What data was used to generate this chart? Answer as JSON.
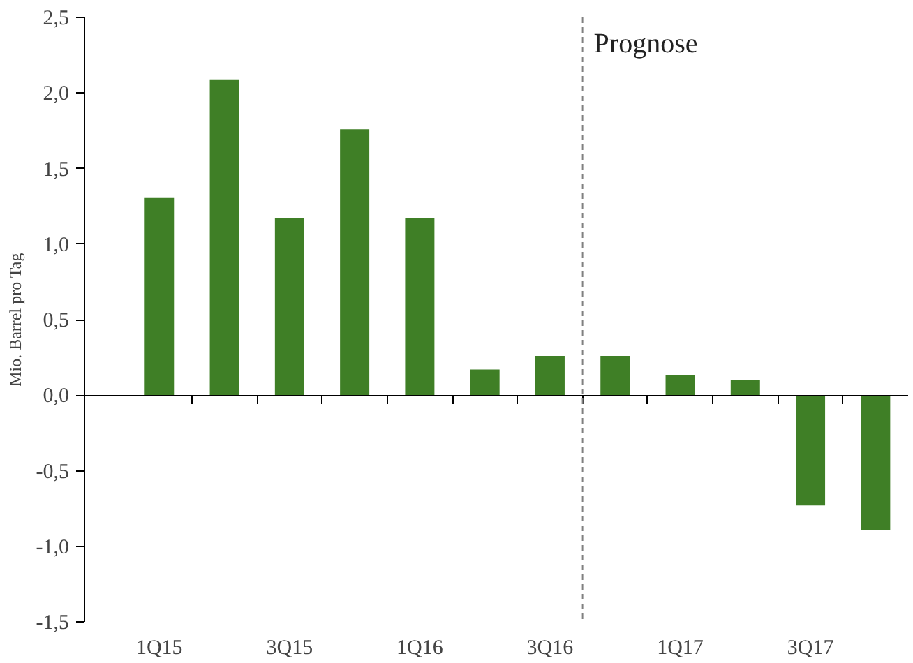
{
  "chart_data": {
    "type": "bar",
    "ylabel": "Mio. Barrel pro Tag",
    "categories": [
      "1Q15",
      null,
      "3Q15",
      null,
      "1Q16",
      null,
      "3Q16",
      null,
      "1Q17",
      null,
      "3Q17",
      null
    ],
    "values": [
      1.31,
      2.09,
      1.17,
      1.76,
      1.17,
      0.17,
      0.26,
      0.26,
      0.13,
      0.1,
      -0.73,
      -0.89
    ],
    "color": "#3f7f26",
    "ylim": [
      -1.5,
      2.5
    ],
    "yticks": [
      {
        "value": -1.5,
        "label": "-1,5"
      },
      {
        "value": -1.0,
        "label": "-1,0"
      },
      {
        "value": -0.5,
        "label": "-0,5"
      },
      {
        "value": 0.0,
        "label": "0,0"
      },
      {
        "value": 0.5,
        "label": "0,5"
      },
      {
        "value": 1.0,
        "label": "1,0"
      },
      {
        "value": 1.5,
        "label": "1,5"
      },
      {
        "value": 2.0,
        "label": "2,0"
      },
      {
        "value": 2.5,
        "label": "2,5"
      }
    ],
    "annotations": [
      "Prognose"
    ],
    "grid": false
  }
}
